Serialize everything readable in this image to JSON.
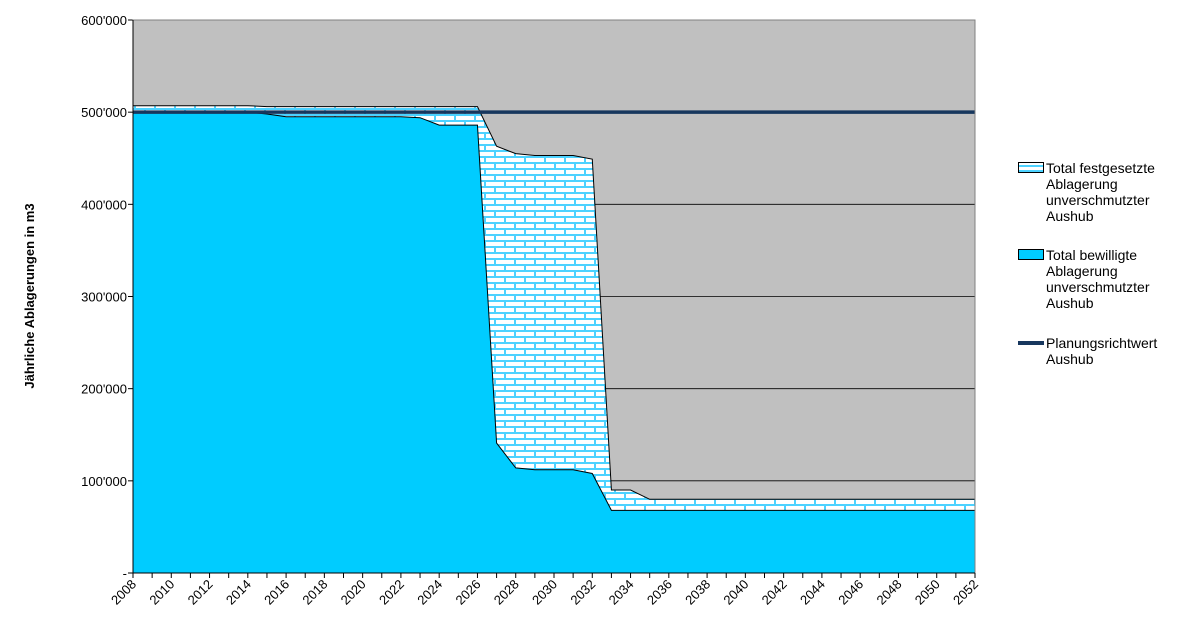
{
  "chart_data": {
    "type": "area",
    "y_label": "Jährliche Ablagerungen in m3",
    "categories": [
      "2008",
      null,
      "2010",
      null,
      "2012",
      null,
      "2014",
      null,
      "2016",
      null,
      "2018",
      null,
      "2020",
      null,
      "2022",
      null,
      "2024",
      null,
      "2026",
      null,
      "2028",
      null,
      "2030",
      null,
      "2032",
      null,
      "2034",
      null,
      "2036",
      null,
      "2038",
      null,
      "2040",
      null,
      "2042",
      null,
      "2044",
      null,
      "2046",
      null,
      "2048",
      null,
      "2050",
      null,
      "2052"
    ],
    "series": [
      {
        "name": "Total festgesetzte Ablagerung unverschmutzter Aushub",
        "type": "area",
        "color": "#4dd2ff",
        "pattern": "brick",
        "values": [
          507000,
          507000,
          507000,
          507000,
          507000,
          507000,
          507000,
          506000,
          506000,
          506000,
          506000,
          506000,
          506000,
          506000,
          506000,
          506000,
          506000,
          506000,
          506000,
          463000,
          455000,
          453000,
          453000,
          453000,
          449000,
          90000,
          90000,
          80000,
          80000,
          80000,
          80000,
          80000,
          80000,
          80000,
          80000,
          80000,
          80000,
          80000,
          80000,
          80000,
          80000,
          80000,
          80000,
          80000,
          80000
        ]
      },
      {
        "name": "Total bewilligte Ablagerung unverschmutzter Aushub",
        "type": "area",
        "color": "#00ccff",
        "values": [
          500000,
          500000,
          500000,
          500000,
          500000,
          500000,
          500000,
          498000,
          495000,
          495000,
          495000,
          495000,
          495000,
          495000,
          495000,
          494000,
          486000,
          486000,
          486000,
          141000,
          114000,
          112000,
          112000,
          112000,
          108000,
          68000,
          68000,
          68000,
          68000,
          68000,
          68000,
          68000,
          68000,
          68000,
          68000,
          68000,
          68000,
          68000,
          68000,
          68000,
          68000,
          68000,
          68000,
          68000,
          68000
        ]
      },
      {
        "name": "Planungsrichtwert Aushub",
        "type": "line",
        "color": "#17375e",
        "values": [
          500000,
          500000,
          500000,
          500000,
          500000,
          500000,
          500000,
          500000,
          500000,
          500000,
          500000,
          500000,
          500000,
          500000,
          500000,
          500000,
          500000,
          500000,
          500000,
          500000,
          500000,
          500000,
          500000,
          500000,
          500000,
          500000,
          500000,
          500000,
          500000,
          500000,
          500000,
          500000,
          500000,
          500000,
          500000,
          500000,
          500000,
          500000,
          500000,
          500000,
          500000,
          500000,
          500000,
          500000,
          500000
        ]
      }
    ],
    "ylim": [
      0,
      600000
    ],
    "yticks": [
      {
        "value": 0,
        "label": "-"
      },
      {
        "value": 100000,
        "label": "100'000"
      },
      {
        "value": 200000,
        "label": "200'000"
      },
      {
        "value": 300000,
        "label": "300'000"
      },
      {
        "value": 400000,
        "label": "400'000"
      },
      {
        "value": 500000,
        "label": "500'000"
      },
      {
        "value": 600000,
        "label": "600'000"
      }
    ],
    "grid": true,
    "plot_color": "#c0c0c0",
    "legend": "right"
  }
}
